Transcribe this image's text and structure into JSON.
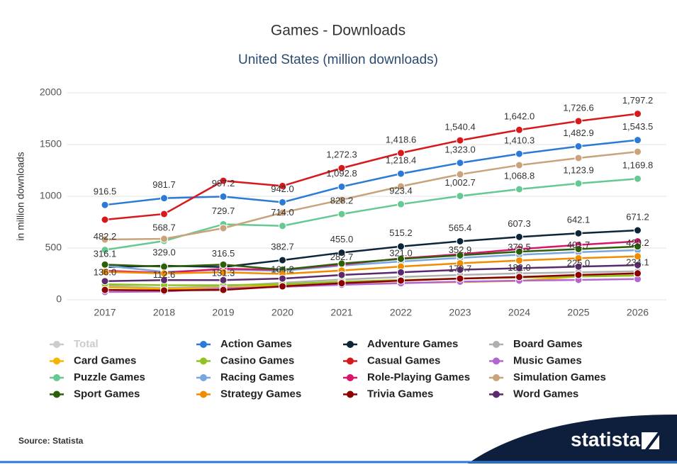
{
  "chart_data": {
    "type": "line",
    "title": "Games - Downloads",
    "subtitle": "United States (million downloads)",
    "y_label": "in million downloads",
    "categories": [
      "2017",
      "2018",
      "2019",
      "2020",
      "2021",
      "2022",
      "2023",
      "2024",
      "2025",
      "2026"
    ],
    "ylim": [
      0,
      2000
    ],
    "yticks": [
      0,
      500,
      1000,
      1500,
      2000
    ],
    "grid": true,
    "legend": "bottom",
    "series": [
      {
        "name": "Total",
        "color": "#cccccc",
        "visible": false,
        "values": [
          null,
          null,
          null,
          null,
          null,
          null,
          null,
          null,
          null,
          null
        ]
      },
      {
        "name": "Action Games",
        "color": "#2b7bd6",
        "values": [
          916.5,
          981.7,
          997.2,
          942.0,
          1092.8,
          1218.4,
          1323.0,
          1410.3,
          1482.9,
          1543.5
        ],
        "value_labels": [
          "916.5",
          "981.7",
          "997.2",
          "942.0",
          "1,092.8",
          "1,218.4",
          "1,323.0",
          "1,410.3",
          "1,482.9",
          "1,543.5"
        ]
      },
      {
        "name": "Adventure Games",
        "color": "#0d2538",
        "values": [
          316.1,
          329.0,
          316.5,
          382.7,
          455.0,
          515.2,
          565.4,
          607.3,
          642.1,
          671.2
        ],
        "value_labels": [
          "316.1",
          "329.0",
          "316.5",
          "382.7",
          "455.0",
          "515.2",
          "565.4",
          "607.3",
          "642.1",
          "671.2"
        ]
      },
      {
        "name": "Board Games",
        "color": "#b0b0b0",
        "values": [
          136.0,
          112.6,
          131.3,
          164.2,
          195,
          220,
          240,
          255,
          265,
          275
        ],
        "value_labels": [
          "136.0",
          "112.6",
          "131.3",
          "164.2",
          null,
          null,
          null,
          null,
          null,
          null
        ]
      },
      {
        "name": "Card Games",
        "color": "#f7b500",
        "values": [
          120,
          105,
          115,
          140,
          150,
          163,
          170.7,
          182.0,
          225.0,
          234.1
        ],
        "value_labels": [
          null,
          null,
          null,
          null,
          null,
          null,
          "170.7",
          "182.0",
          "225.0",
          "234.1"
        ]
      },
      {
        "name": "Casino Games",
        "color": "#8fc31f",
        "values": [
          150,
          140,
          140,
          150,
          175,
          190,
          205,
          215,
          225,
          235
        ]
      },
      {
        "name": "Casual Games",
        "color": "#d7191c",
        "values": [
          774,
          829,
          1150,
          1100,
          1272.3,
          1418.6,
          1540.4,
          1642.0,
          1726.6,
          1797.2
        ],
        "value_labels": [
          null,
          null,
          null,
          null,
          "1,272.3",
          "1,418.6",
          "1,540.4",
          "1,642.0",
          "1,726.6",
          "1,797.2"
        ]
      },
      {
        "name": "Music Games",
        "color": "#b266d1",
        "values": [
          75,
          80,
          110,
          125,
          145,
          160,
          175,
          185,
          192,
          200
        ]
      },
      {
        "name": "Puzzle Games",
        "color": "#66c892",
        "values": [
          482.2,
          568.7,
          729.7,
          714.0,
          828.2,
          923.4,
          1002.7,
          1068.8,
          1123.9,
          1169.8
        ],
        "value_labels": [
          "482.2",
          "568.7",
          "729.7",
          "714.0",
          "828.2",
          "923.4",
          "1,002.7",
          "1,068.8",
          "1,123.9",
          "1,169.8"
        ]
      },
      {
        "name": "Racing Games",
        "color": "#7aa6de",
        "values": [
          330,
          270,
          290,
          280,
          330,
          370,
          405,
          435,
          460,
          480
        ]
      },
      {
        "name": "Role-Playing Games",
        "color": "#d6156b",
        "values": [
          280,
          260,
          300,
          290,
          340,
          400,
          440,
          490,
          530,
          565
        ]
      },
      {
        "name": "Simulation Games",
        "color": "#c9a37a",
        "values": [
          582,
          589,
          692,
          842,
          966,
          1096,
          1212,
          1301,
          1370,
          1431
        ]
      },
      {
        "name": "Sport Games",
        "color": "#2d5f0a",
        "values": [
          340,
          320,
          340,
          290,
          350,
          395,
          430,
          465,
          490,
          515
        ]
      },
      {
        "name": "Strategy Games",
        "color": "#f08c00",
        "values": [
          270,
          255,
          265,
          250,
          282.7,
          321.0,
          352.9,
          379.5,
          401.7,
          420.2
        ],
        "value_labels": [
          null,
          null,
          null,
          null,
          "282.7",
          "321.0",
          "352.9",
          "379.5",
          "401.7",
          "420.2"
        ]
      },
      {
        "name": "Trivia Games",
        "color": "#8b0000",
        "values": [
          95,
          90,
          95,
          130,
          160,
          185,
          205,
          220,
          240,
          255
        ]
      },
      {
        "name": "Word Games",
        "color": "#5b2a6e",
        "values": [
          180,
          190,
          190,
          205,
          240,
          265,
          290,
          305,
          320,
          335
        ]
      }
    ]
  },
  "source": "Source: Statista",
  "logo": "statista"
}
